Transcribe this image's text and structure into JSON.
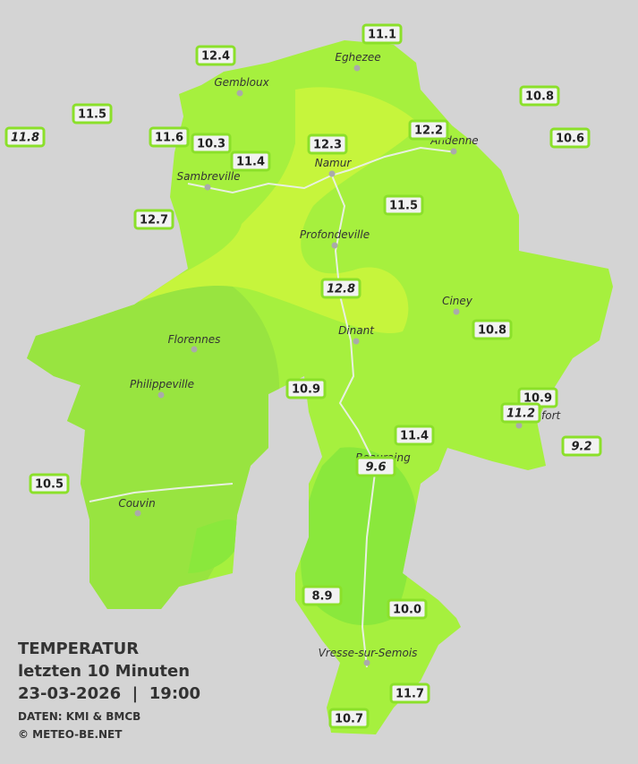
{
  "title": {
    "line1": "TEMPERATUR",
    "line2": "letzten 10 Minuten",
    "line3": "23-03-2026  |  19:00",
    "line4": "DATEN: KMI & BMCB",
    "line5": "© METEO-BE.NET"
  },
  "cities": [
    "Eghezee",
    "Gembloux",
    "Andenne",
    "Namur",
    "Sambreville",
    "Profondeville",
    "Ciney",
    "Dinant",
    "Florennes",
    "Philippeville",
    "Rochefort",
    "Beauraing",
    "Couvin",
    "Vresse-sur-Semois"
  ],
  "stations": [
    {
      "value": "11.1",
      "italic": false
    },
    {
      "value": "12.4",
      "italic": false
    },
    {
      "value": "10.8",
      "italic": false
    },
    {
      "value": "11.5",
      "italic": false
    },
    {
      "value": "11.8",
      "italic": true
    },
    {
      "value": "11.6",
      "italic": false
    },
    {
      "value": "10.3",
      "italic": false
    },
    {
      "value": "12.2",
      "italic": false
    },
    {
      "value": "10.6",
      "italic": false
    },
    {
      "value": "12.3",
      "italic": false
    },
    {
      "value": "11.4",
      "italic": false
    },
    {
      "value": "11.5",
      "italic": false
    },
    {
      "value": "12.7",
      "italic": false
    },
    {
      "value": "12.8",
      "italic": true
    },
    {
      "value": "10.8",
      "italic": false
    },
    {
      "value": "10.9",
      "italic": false
    },
    {
      "value": "10.9",
      "italic": false
    },
    {
      "value": "11.2",
      "italic": true
    },
    {
      "value": "11.4",
      "italic": false
    },
    {
      "value": "9.2",
      "italic": true
    },
    {
      "value": "9.6",
      "italic": true
    },
    {
      "value": "10.5",
      "italic": false
    },
    {
      "value": "8.9",
      "italic": false
    },
    {
      "value": "10.0",
      "italic": false
    },
    {
      "value": "11.7",
      "italic": false
    },
    {
      "value": "10.7",
      "italic": false
    }
  ]
}
